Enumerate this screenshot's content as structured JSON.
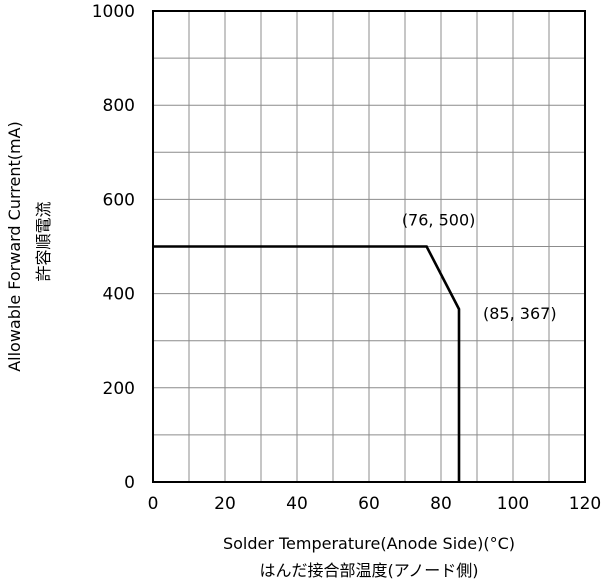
{
  "chart_data": {
    "type": "line",
    "title": "",
    "xlabel": "Solder Temperature(Anode Side)(°C)",
    "xlabel_2": "はんだ接合部温度(アノード側)",
    "ylabel": "Allowable Forward Current(mA)",
    "ylabel_2": "許容順電流",
    "xlim": [
      0,
      120
    ],
    "ylim": [
      0,
      1000
    ],
    "x_ticks": [
      "0",
      "20",
      "40",
      "60",
      "80",
      "100",
      "120"
    ],
    "y_ticks": [
      "0",
      "200",
      "400",
      "600",
      "800",
      "1000"
    ],
    "x_minor_grid_step": 10,
    "y_minor_grid_step": 100,
    "grid": true,
    "series": [
      {
        "points": [
          {
            "x": 0,
            "y": 500
          },
          {
            "x": 76,
            "y": 500
          },
          {
            "x": 85,
            "y": 367
          },
          {
            "x": 85,
            "y": 0
          }
        ]
      }
    ],
    "annotations": [
      {
        "text": "(76, 500)",
        "x": 76,
        "y": 500
      },
      {
        "text": "(85, 367)",
        "x": 85,
        "y": 367
      }
    ]
  }
}
